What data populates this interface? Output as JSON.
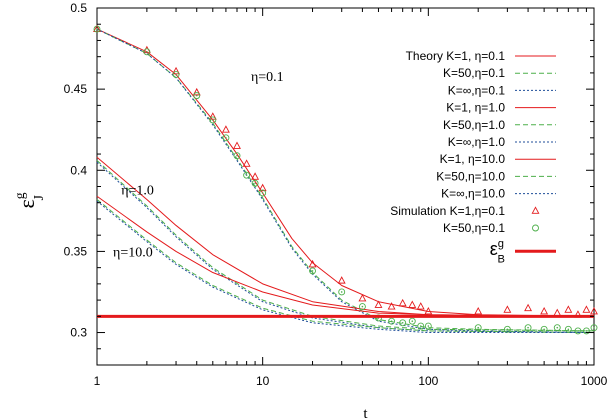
{
  "chart_data": {
    "type": "line",
    "xscale": "log",
    "xlim": [
      1,
      1000
    ],
    "ylim": [
      0.28,
      0.5
    ],
    "xticks": [
      1,
      10,
      100,
      1000
    ],
    "xtick_labels": [
      "1",
      "10",
      "100",
      "1000"
    ],
    "yticks": [
      0.3,
      0.35,
      0.4,
      0.45,
      0.5
    ],
    "ytick_labels": [
      "0.3",
      "0.35",
      "0.4",
      "0.45",
      "0.5"
    ],
    "xlabel": "t",
    "ylabel": "ε_J^g",
    "legend_position": "top-right",
    "colors": {
      "red": "#e41a1c",
      "green": "#4daf4a",
      "blue": "#1f4e9a",
      "sim_red": "#e41a1c",
      "sim_green": "#4daf4a",
      "baseline": "#e41a1c"
    },
    "annotations": [
      {
        "text": "η=0.1",
        "x": 8.5,
        "y": 0.455
      },
      {
        "text": "η=1.0",
        "x": 1.4,
        "y": 0.385
      },
      {
        "text": "η=10.0",
        "x": 1.25,
        "y": 0.347
      }
    ],
    "series": [
      {
        "name": "Theory K=1, η=0.1",
        "style": "line",
        "color": "red",
        "dash": "",
        "x": [
          1,
          2,
          3,
          5,
          7,
          10,
          15,
          20,
          30,
          50,
          100,
          200,
          1000
        ],
        "y": [
          0.487,
          0.473,
          0.459,
          0.431,
          0.41,
          0.386,
          0.358,
          0.343,
          0.329,
          0.319,
          0.313,
          0.311,
          0.31
        ]
      },
      {
        "name": "K=50,η=0.1",
        "style": "line",
        "color": "green",
        "dash": "5,3",
        "x": [
          1,
          2,
          3,
          5,
          7,
          10,
          15,
          20,
          30,
          50,
          100,
          200,
          1000
        ],
        "y": [
          0.487,
          0.472,
          0.457,
          0.429,
          0.407,
          0.383,
          0.353,
          0.337,
          0.32,
          0.308,
          0.303,
          0.302,
          0.301
        ]
      },
      {
        "name": "K=∞,η=0.1",
        "style": "line",
        "color": "blue",
        "dash": "2,2",
        "x": [
          1,
          2,
          3,
          5,
          7,
          10,
          15,
          20,
          30,
          50,
          100,
          200,
          1000
        ],
        "y": [
          0.487,
          0.472,
          0.457,
          0.428,
          0.406,
          0.382,
          0.352,
          0.336,
          0.319,
          0.307,
          0.302,
          0.301,
          0.3
        ]
      },
      {
        "name": "K=1, η=1.0",
        "style": "line",
        "color": "red",
        "dash": "",
        "x": [
          1,
          2,
          3,
          5,
          10,
          20,
          50,
          100,
          1000
        ],
        "y": [
          0.408,
          0.382,
          0.366,
          0.348,
          0.33,
          0.319,
          0.313,
          0.311,
          0.31
        ]
      },
      {
        "name": "K=50,η=1.0",
        "style": "line",
        "color": "green",
        "dash": "5,3",
        "x": [
          1,
          2,
          3,
          5,
          10,
          20,
          50,
          100,
          1000
        ],
        "y": [
          0.406,
          0.378,
          0.36,
          0.34,
          0.32,
          0.31,
          0.304,
          0.302,
          0.301
        ]
      },
      {
        "name": "K=∞,η=1.0",
        "style": "line",
        "color": "blue",
        "dash": "2,2",
        "x": [
          1,
          2,
          3,
          5,
          10,
          20,
          50,
          100,
          1000
        ],
        "y": [
          0.405,
          0.377,
          0.359,
          0.339,
          0.319,
          0.309,
          0.303,
          0.301,
          0.3
        ]
      },
      {
        "name": "K=1, η=10.0",
        "style": "line",
        "color": "red",
        "dash": "",
        "x": [
          1,
          2,
          3,
          5,
          10,
          20,
          50,
          100,
          1000
        ],
        "y": [
          0.384,
          0.362,
          0.35,
          0.337,
          0.325,
          0.317,
          0.312,
          0.311,
          0.31
        ]
      },
      {
        "name": "K=50,η=10.0",
        "style": "line",
        "color": "green",
        "dash": "5,3",
        "x": [
          1,
          2,
          3,
          5,
          10,
          20,
          50,
          100,
          1000
        ],
        "y": [
          0.382,
          0.357,
          0.343,
          0.329,
          0.315,
          0.307,
          0.303,
          0.301,
          0.3
        ]
      },
      {
        "name": "K=∞,η=10.0",
        "style": "line",
        "color": "blue",
        "dash": "2,2",
        "x": [
          1,
          2,
          3,
          5,
          10,
          20,
          50,
          100,
          1000
        ],
        "y": [
          0.381,
          0.356,
          0.342,
          0.328,
          0.314,
          0.306,
          0.302,
          0.3,
          0.3
        ]
      },
      {
        "name": "Simulation K=1,η=0.1",
        "style": "marker",
        "marker": "triangle",
        "color": "sim_red",
        "x": [
          1,
          2,
          3,
          4,
          5,
          6,
          7,
          8,
          9,
          10,
          20,
          30,
          40,
          50,
          60,
          70,
          80,
          90,
          100,
          200,
          300,
          400,
          500,
          600,
          700,
          800,
          900,
          1000
        ],
        "y": [
          0.487,
          0.474,
          0.461,
          0.448,
          0.433,
          0.425,
          0.415,
          0.404,
          0.396,
          0.389,
          0.342,
          0.332,
          0.321,
          0.317,
          0.316,
          0.318,
          0.317,
          0.316,
          0.313,
          0.313,
          0.314,
          0.315,
          0.313,
          0.312,
          0.314,
          0.311,
          0.314,
          0.313
        ]
      },
      {
        "name": "K=50,η=0.1",
        "style": "marker",
        "marker": "circle",
        "color": "sim_green",
        "x": [
          1,
          2,
          3,
          4,
          5,
          6,
          7,
          8,
          9,
          10,
          20,
          30,
          40,
          50,
          60,
          70,
          80,
          90,
          100,
          200,
          300,
          400,
          500,
          600,
          700,
          800,
          900,
          1000
        ],
        "y": [
          0.487,
          0.473,
          0.459,
          0.446,
          0.431,
          0.42,
          0.409,
          0.397,
          0.392,
          0.386,
          0.338,
          0.325,
          0.316,
          0.309,
          0.307,
          0.306,
          0.307,
          0.304,
          0.304,
          0.303,
          0.302,
          0.303,
          0.302,
          0.303,
          0.302,
          0.301,
          0.301,
          0.303
        ]
      },
      {
        "name": "ε_B^g",
        "style": "hline",
        "color": "baseline",
        "y": 0.31
      }
    ]
  }
}
